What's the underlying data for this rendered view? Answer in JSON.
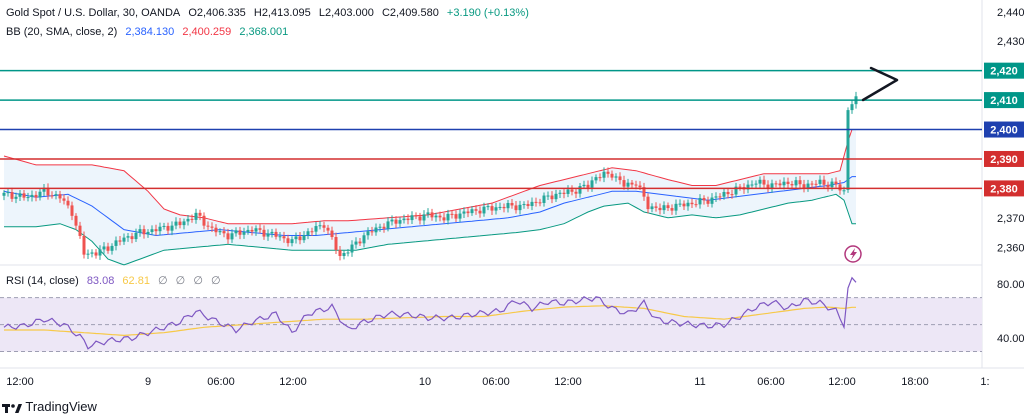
{
  "header": {
    "symbol": "Gold Spot / U.S. Dollar, 30, OANDA",
    "open": "O2,406.335",
    "high": "H2,413.095",
    "low": "L2,403.000",
    "close": "C2,409.580",
    "change": "+3.190 (+0.13%)"
  },
  "bb_legend": {
    "label": "BB (20, SMA, close, 2)",
    "basis": "2,384.130",
    "upper": "2,400.259",
    "lower": "2,368.001"
  },
  "rsi_legend": {
    "label": "RSI (14, close)",
    "rsi": "83.08",
    "ma": "62.81",
    "extra": [
      "∅",
      "∅",
      "∅",
      "∅"
    ]
  },
  "footer": {
    "brand": "TradingView"
  },
  "colors": {
    "up": "#26a69a",
    "down": "#ef5350",
    "bb_basis": "#2962ff",
    "bb_upper": "#f23645",
    "bb_lower": "#089981",
    "bb_fill": "#e6f1fb",
    "rsi": "#7e57c2",
    "rsi_ma": "#f7c948",
    "rsi_band": "#ede7f6",
    "level_green": "#009688",
    "level_blue": "#1e40af",
    "level_red": "#d32f2f"
  },
  "chart_data": {
    "type": "candlestick",
    "price_axis": {
      "ticks": [
        "2,440",
        "2,430",
        "2,420",
        "2,410",
        "2,400",
        "2,390",
        "2,380",
        "2,370",
        "2,360"
      ],
      "range": [
        2355,
        2444
      ]
    },
    "time_axis": {
      "labels": [
        "12:00",
        "9",
        "06:00",
        "12:00",
        "10",
        "06:00",
        "12:00",
        "11",
        "06:00",
        "12:00",
        "18:00",
        "1:"
      ]
    },
    "horizontal_levels": [
      {
        "value": 2420,
        "label": "2,420",
        "color": "level_green"
      },
      {
        "value": 2410,
        "label": "2,410",
        "color": "level_green"
      },
      {
        "value": 2400,
        "label": "2,400",
        "color": "level_blue"
      },
      {
        "value": 2390,
        "label": "2,390",
        "color": "level_red"
      },
      {
        "value": 2380,
        "label": "2,380",
        "color": "level_red"
      }
    ],
    "close_anchors": [
      [
        0,
        2378
      ],
      [
        6,
        2377
      ],
      [
        10,
        2379
      ],
      [
        14,
        2377
      ],
      [
        17,
        2372
      ],
      [
        20,
        2358
      ],
      [
        23,
        2358
      ],
      [
        26,
        2360
      ],
      [
        30,
        2363
      ],
      [
        34,
        2365
      ],
      [
        38,
        2366
      ],
      [
        44,
        2368
      ],
      [
        48,
        2371
      ],
      [
        52,
        2366
      ],
      [
        56,
        2364
      ],
      [
        62,
        2366
      ],
      [
        68,
        2364
      ],
      [
        72,
        2362
      ],
      [
        76,
        2365
      ],
      [
        80,
        2368
      ],
      [
        84,
        2357
      ],
      [
        87,
        2360
      ],
      [
        90,
        2364
      ],
      [
        94,
        2367
      ],
      [
        98,
        2369
      ],
      [
        102,
        2370
      ],
      [
        106,
        2371
      ],
      [
        110,
        2370
      ],
      [
        116,
        2372
      ],
      [
        120,
        2373
      ],
      [
        126,
        2374
      ],
      [
        130,
        2374
      ],
      [
        134,
        2376
      ],
      [
        138,
        2378
      ],
      [
        142,
        2379
      ],
      [
        146,
        2381
      ],
      [
        148,
        2384
      ],
      [
        152,
        2385
      ],
      [
        155,
        2381
      ],
      [
        158,
        2382
      ],
      [
        161,
        2374
      ],
      [
        164,
        2373
      ],
      [
        168,
        2374
      ],
      [
        172,
        2375
      ],
      [
        176,
        2376
      ],
      [
        180,
        2378
      ],
      [
        184,
        2380
      ],
      [
        188,
        2382
      ],
      [
        192,
        2381
      ],
      [
        196,
        2382
      ],
      [
        200,
        2381
      ],
      [
        204,
        2382
      ],
      [
        208,
        2381
      ],
      [
        210,
        2379
      ],
      [
        211,
        2407
      ],
      [
        212,
        2409
      ],
      [
        213,
        2410
      ]
    ],
    "bb_upper_anchors": [
      [
        0,
        2391
      ],
      [
        8,
        2388
      ],
      [
        16,
        2388
      ],
      [
        22,
        2388
      ],
      [
        30,
        2386
      ],
      [
        36,
        2379
      ],
      [
        40,
        2373
      ],
      [
        44,
        2371
      ],
      [
        50,
        2370
      ],
      [
        56,
        2368
      ],
      [
        64,
        2368
      ],
      [
        72,
        2368
      ],
      [
        80,
        2369
      ],
      [
        86,
        2369
      ],
      [
        96,
        2370
      ],
      [
        106,
        2371
      ],
      [
        114,
        2373
      ],
      [
        122,
        2375
      ],
      [
        128,
        2378
      ],
      [
        134,
        2381
      ],
      [
        140,
        2383
      ],
      [
        146,
        2385
      ],
      [
        152,
        2387
      ],
      [
        158,
        2386
      ],
      [
        166,
        2383
      ],
      [
        172,
        2381
      ],
      [
        178,
        2381
      ],
      [
        184,
        2383
      ],
      [
        190,
        2385
      ],
      [
        196,
        2385
      ],
      [
        202,
        2385
      ],
      [
        206,
        2385
      ],
      [
        209,
        2386
      ],
      [
        211,
        2396
      ],
      [
        212,
        2400
      ]
    ],
    "bb_basis_anchors": [
      [
        0,
        2379
      ],
      [
        8,
        2377
      ],
      [
        16,
        2378
      ],
      [
        22,
        2374
      ],
      [
        30,
        2366
      ],
      [
        38,
        2364
      ],
      [
        46,
        2365
      ],
      [
        54,
        2366
      ],
      [
        62,
        2365
      ],
      [
        70,
        2364
      ],
      [
        78,
        2364
      ],
      [
        86,
        2365
      ],
      [
        94,
        2366
      ],
      [
        102,
        2367
      ],
      [
        110,
        2368
      ],
      [
        118,
        2369
      ],
      [
        126,
        2370
      ],
      [
        134,
        2372
      ],
      [
        140,
        2375
      ],
      [
        146,
        2377
      ],
      [
        152,
        2379
      ],
      [
        158,
        2379
      ],
      [
        164,
        2378
      ],
      [
        170,
        2377
      ],
      [
        176,
        2376
      ],
      [
        182,
        2377
      ],
      [
        188,
        2378
      ],
      [
        194,
        2379
      ],
      [
        200,
        2380
      ],
      [
        206,
        2381
      ],
      [
        210,
        2382
      ],
      [
        212,
        2384
      ]
    ],
    "bb_lower_anchors": [
      [
        0,
        2367
      ],
      [
        8,
        2367
      ],
      [
        14,
        2368
      ],
      [
        18,
        2366
      ],
      [
        22,
        2362
      ],
      [
        26,
        2356
      ],
      [
        30,
        2354
      ],
      [
        34,
        2356
      ],
      [
        40,
        2359
      ],
      [
        48,
        2360
      ],
      [
        56,
        2361
      ],
      [
        64,
        2360
      ],
      [
        72,
        2359
      ],
      [
        80,
        2359
      ],
      [
        88,
        2359
      ],
      [
        96,
        2361
      ],
      [
        104,
        2362
      ],
      [
        112,
        2363
      ],
      [
        120,
        2364
      ],
      [
        128,
        2365
      ],
      [
        134,
        2366
      ],
      [
        140,
        2368
      ],
      [
        146,
        2372
      ],
      [
        150,
        2374
      ],
      [
        156,
        2375
      ],
      [
        160,
        2372
      ],
      [
        166,
        2370
      ],
      [
        172,
        2371
      ],
      [
        178,
        2370
      ],
      [
        184,
        2371
      ],
      [
        190,
        2373
      ],
      [
        196,
        2375
      ],
      [
        202,
        2376
      ],
      [
        208,
        2378
      ],
      [
        210,
        2376
      ],
      [
        211,
        2372
      ],
      [
        212,
        2368
      ]
    ],
    "rsi": {
      "axis_ticks": [
        "80.00",
        "40.00"
      ],
      "range": [
        20,
        92
      ],
      "upper_band": 70,
      "middle_band": 50,
      "lower_band": 30,
      "rsi_anchors": [
        [
          0,
          48
        ],
        [
          5,
          49
        ],
        [
          10,
          54
        ],
        [
          15,
          50
        ],
        [
          19,
          41
        ],
        [
          21,
          34
        ],
        [
          26,
          38
        ],
        [
          32,
          40
        ],
        [
          38,
          46
        ],
        [
          44,
          52
        ],
        [
          48,
          60
        ],
        [
          52,
          54
        ],
        [
          58,
          46
        ],
        [
          62,
          52
        ],
        [
          68,
          58
        ],
        [
          72,
          44
        ],
        [
          76,
          58
        ],
        [
          82,
          63
        ],
        [
          86,
          46
        ],
        [
          90,
          52
        ],
        [
          96,
          58
        ],
        [
          102,
          57
        ],
        [
          106,
          55
        ],
        [
          112,
          55
        ],
        [
          118,
          58
        ],
        [
          124,
          60
        ],
        [
          128,
          68
        ],
        [
          132,
          62
        ],
        [
          136,
          67
        ],
        [
          140,
          66
        ],
        [
          144,
          68
        ],
        [
          148,
          70
        ],
        [
          152,
          62
        ],
        [
          156,
          58
        ],
        [
          160,
          66
        ],
        [
          163,
          54
        ],
        [
          166,
          52
        ],
        [
          172,
          50
        ],
        [
          176,
          49
        ],
        [
          180,
          50
        ],
        [
          184,
          56
        ],
        [
          188,
          63
        ],
        [
          192,
          67
        ],
        [
          196,
          62
        ],
        [
          200,
          68
        ],
        [
          204,
          66
        ],
        [
          208,
          60
        ],
        [
          210,
          50
        ],
        [
          211,
          76
        ],
        [
          212,
          83
        ]
      ],
      "ma_anchors": [
        [
          0,
          46
        ],
        [
          10,
          46
        ],
        [
          20,
          44
        ],
        [
          30,
          42
        ],
        [
          40,
          44
        ],
        [
          50,
          48
        ],
        [
          60,
          50
        ],
        [
          70,
          52
        ],
        [
          80,
          54
        ],
        [
          90,
          54
        ],
        [
          100,
          55
        ],
        [
          110,
          56
        ],
        [
          120,
          56
        ],
        [
          130,
          60
        ],
        [
          140,
          63
        ],
        [
          150,
          64
        ],
        [
          160,
          62
        ],
        [
          170,
          56
        ],
        [
          180,
          54
        ],
        [
          190,
          58
        ],
        [
          200,
          62
        ],
        [
          206,
          63
        ],
        [
          210,
          62
        ],
        [
          212,
          62.8
        ]
      ]
    }
  }
}
